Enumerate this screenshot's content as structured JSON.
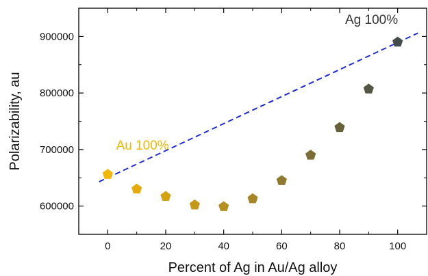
{
  "chart_data": {
    "type": "scatter",
    "xlabel": "Percent of Ag in Au/Ag alloy",
    "ylabel": "Polarizability, au",
    "xlim": [
      -10,
      110
    ],
    "ylim": [
      550000,
      950000
    ],
    "x_ticks": [
      0,
      20,
      40,
      60,
      80,
      100
    ],
    "y_ticks": [
      600000,
      700000,
      800000,
      900000
    ],
    "x_tick_labels": [
      "0",
      "20",
      "40",
      "60",
      "80",
      "100"
    ],
    "y_tick_labels": [
      "600000",
      "700000",
      "800000",
      "900000"
    ],
    "grid": false,
    "series": [
      {
        "marker": "pentagon",
        "x": [
          0,
          10,
          20,
          30,
          40,
          50,
          60,
          70,
          80,
          90,
          100
        ],
        "y": [
          656000,
          630000,
          617000,
          602000,
          599000,
          613000,
          645000,
          690000,
          739000,
          807000,
          890000
        ],
        "colors": [
          "#f2b705",
          "#e3ac0c",
          "#d4a314",
          "#c4991a",
          "#b58f20",
          "#a58526",
          "#8f792e",
          "#7b6d35",
          "#67613b",
          "#545543",
          "#454a4a"
        ]
      }
    ],
    "trend_line": {
      "style": "dashed",
      "color": "#1f2bd6",
      "x": [
        -3,
        107
      ],
      "y": [
        643000,
        906000
      ]
    },
    "annotations": [
      {
        "text": "Au 100%",
        "x": 12,
        "y": 700000,
        "color": "#f2b705"
      },
      {
        "text": "Ag 100%",
        "x": 91,
        "y": 922000,
        "color": "#333333"
      }
    ]
  }
}
